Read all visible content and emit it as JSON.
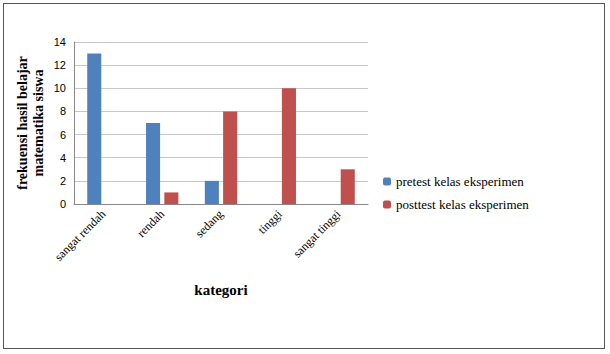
{
  "chart_data": {
    "type": "bar",
    "categories": [
      "sangat rendah",
      "rendah",
      "sedang",
      "tinggi",
      "sangat tinggi"
    ],
    "series": [
      {
        "name": "pretest kelas eksperimen",
        "color": "#4f81bd",
        "values": [
          13,
          7,
          2,
          0,
          0
        ]
      },
      {
        "name": "posttest kelas eksperimen",
        "color": "#c0504d",
        "values": [
          0,
          1,
          8,
          10,
          3
        ]
      }
    ],
    "xlabel": "kategori",
    "ylabel": "frekuensi hasil belajar\nmatematika siswa",
    "ylim": [
      0,
      14
    ],
    "yticks": [
      0,
      2,
      4,
      6,
      8,
      10,
      12,
      14
    ],
    "grid": true,
    "legend": "right"
  }
}
